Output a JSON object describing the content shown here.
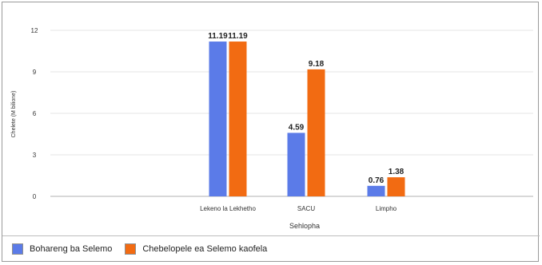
{
  "chart_data": {
    "type": "bar",
    "categories": [
      "Lekeno la Lekhetho",
      "SACU",
      "Limpho"
    ],
    "series": [
      {
        "name": "Bohareng ba Selemo",
        "values": [
          11.19,
          4.59,
          0.76
        ],
        "color": "#5b7be8"
      },
      {
        "name": "Chebelopele ea Selemo kaofela",
        "values": [
          11.19,
          9.18,
          1.38
        ],
        "color": "#f26b12"
      }
    ],
    "data_labels": [
      [
        "11.19",
        "4.59",
        "0.76"
      ],
      [
        "11.19",
        "9.18",
        "1.38"
      ]
    ],
    "xlabel": "Sehlopha",
    "ylabel": "Chelete (M bilione)",
    "ylim": [
      0,
      12
    ],
    "yticks": [
      0,
      3,
      6,
      9,
      12
    ],
    "grid": true,
    "legend_position": "bottom-left"
  }
}
